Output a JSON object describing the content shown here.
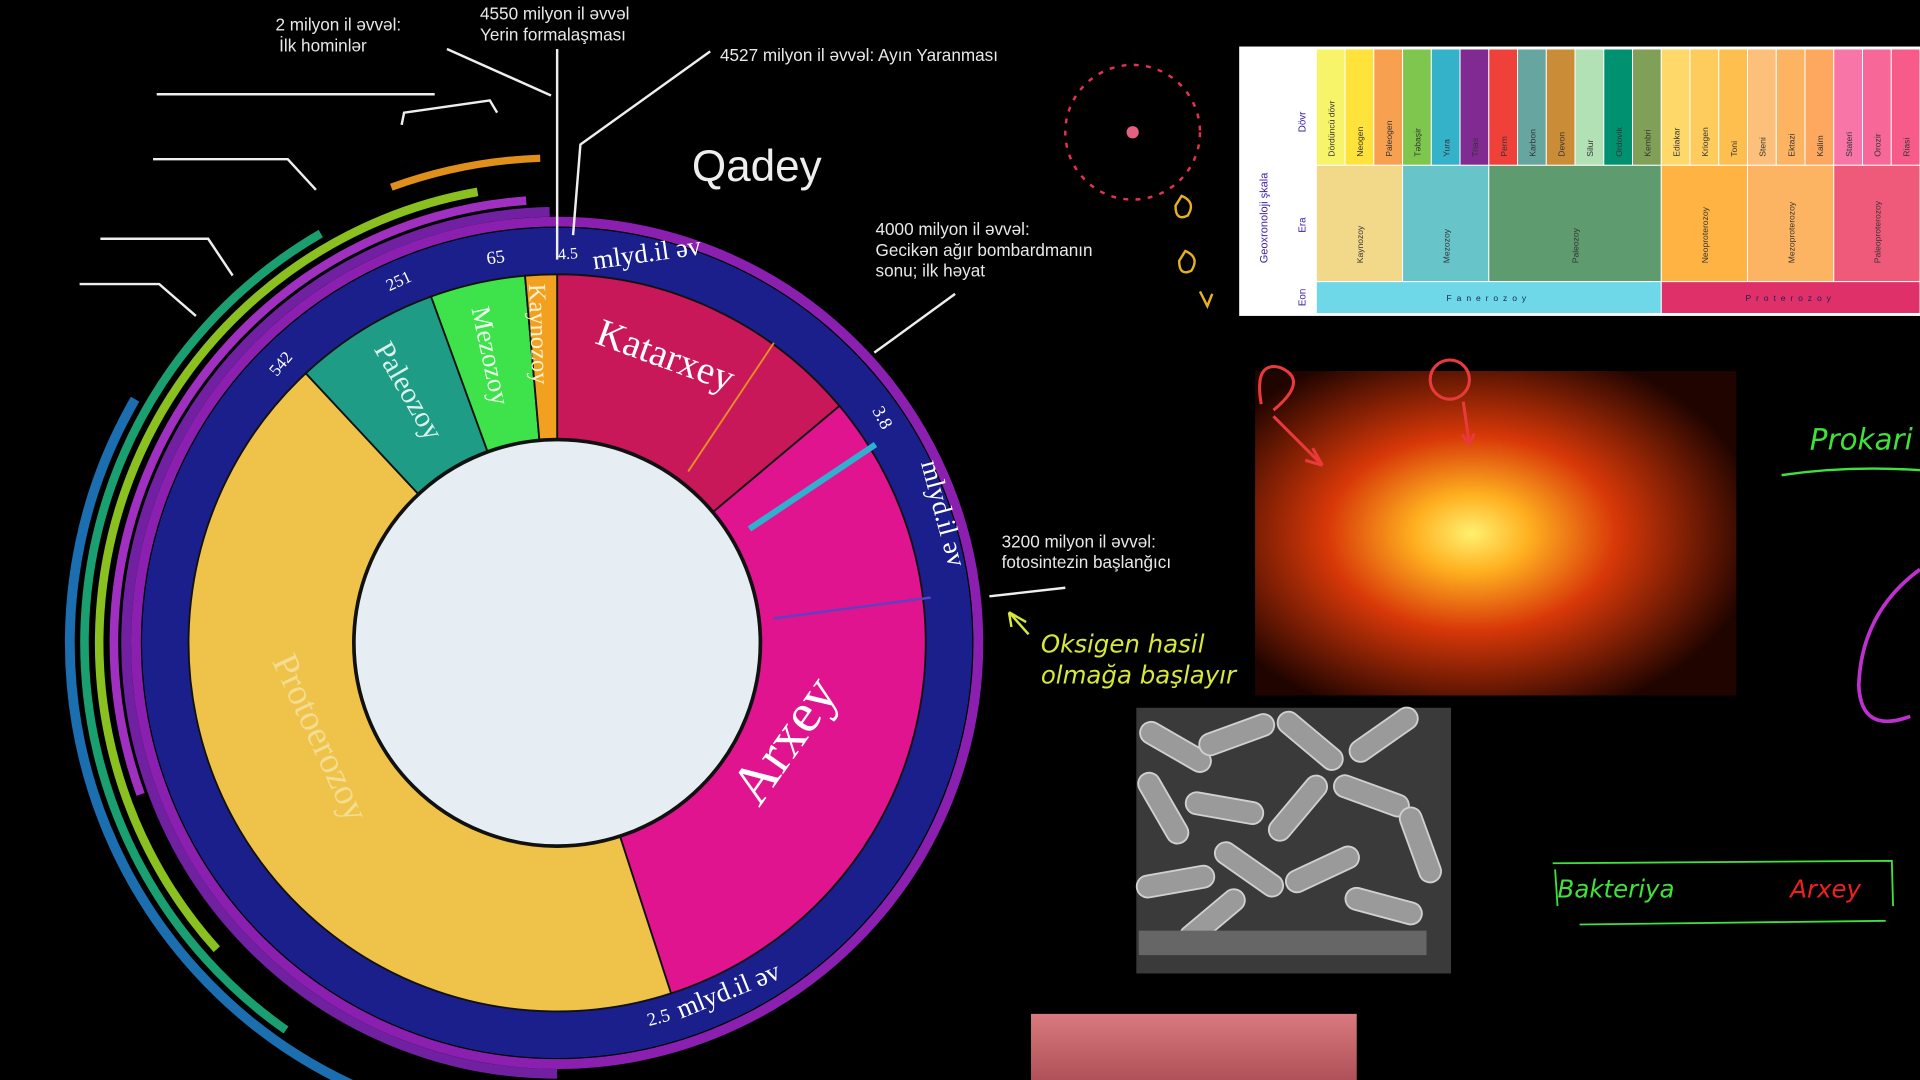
{
  "clock": {
    "title": "Qadey",
    "eons": [
      "Katarxey",
      "Arxey",
      "Protoerozoy"
    ],
    "eras": [
      "Paleozoy",
      "Mezozoy",
      "Kaynozoy"
    ],
    "ring_labels": {
      "top_value": "4.5",
      "top_unit": "mlyd.il əv",
      "right_value": "3.8",
      "right_unit": "mlyd.il əv",
      "bottom_value": "2.5",
      "bottom_unit": "mlyd.il əv",
      "paleozoic_start": "542",
      "mesozoic_start": "251",
      "cenozoic_start": "65"
    },
    "annotations": [
      [
        "2 milyon il əvvəl:",
        "İlk hominlər"
      ],
      [
        "4550 milyon il əvvəl",
        "Yerin formalaşması"
      ],
      [
        "4527 milyon il əvvəl: Ayın Yaranması"
      ],
      [
        "4000 milyon il əvvəl:",
        "Gecikən ağır bombardmanın",
        "sonu; ilk həyat"
      ],
      [
        "3200 milyon il əvvəl:",
        "fotosintezin başlanğıcı"
      ]
    ]
  },
  "handwriting": {
    "oxygen": [
      "Oksigen hasil",
      "olmağa başlayır"
    ],
    "prokaryote": "Prokari",
    "bacteria": "Bakteriya",
    "archaea": "Arxey"
  },
  "table": {
    "title": "Geoxronoloji şkala",
    "row_labels": [
      "Dövr",
      "Era",
      "Eon"
    ],
    "periods": [
      "Dördüncü dövr",
      "Neogen",
      "Paleogen",
      "Təbaşir",
      "Yura",
      "Trias",
      "Perm",
      "Karbon",
      "Devon",
      "Silur",
      "Ordovik",
      "Kembri",
      "Ediakar",
      "Kriogen",
      "Toni",
      "Steni",
      "Ektazi",
      "Kalim",
      "Stateri",
      "Orozir",
      "Riasi"
    ],
    "eras": [
      "Kaynozoy",
      "Mezozoy",
      "Paleozoy",
      "Neoproterozoy",
      "Mezoproterozoy",
      "Paleoproterozoy"
    ],
    "eons": [
      "Fanerozoy",
      "Proterozoy"
    ]
  }
}
